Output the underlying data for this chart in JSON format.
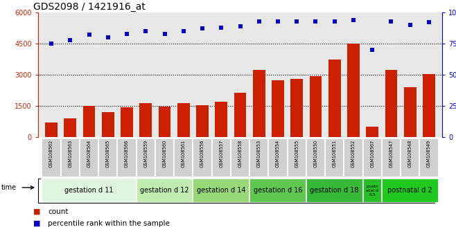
{
  "title": "GDS2098 / 1421916_at",
  "samples": [
    "GSM108562",
    "GSM108563",
    "GSM108564",
    "GSM108565",
    "GSM108566",
    "GSM108559",
    "GSM108560",
    "GSM108561",
    "GSM108556",
    "GSM108557",
    "GSM108558",
    "GSM108553",
    "GSM108554",
    "GSM108555",
    "GSM108550",
    "GSM108551",
    "GSM108552",
    "GSM108567",
    "GSM108547",
    "GSM108548",
    "GSM108549"
  ],
  "counts": [
    700,
    900,
    1500,
    1200,
    1450,
    1650,
    1480,
    1650,
    1550,
    1700,
    2150,
    3250,
    2750,
    2800,
    2950,
    3750,
    4500,
    500,
    3250,
    2400,
    3050
  ],
  "percentile": [
    75,
    78,
    82,
    80,
    83,
    85,
    83,
    85,
    87,
    88,
    89,
    93,
    93,
    93,
    93,
    93,
    94,
    70,
    93,
    90,
    92
  ],
  "groups": [
    {
      "label": "gestation d 11",
      "start": 0,
      "end": 5,
      "color": "#e0f5e0"
    },
    {
      "label": "gestation d 12",
      "start": 5,
      "end": 8,
      "color": "#c0ecb0"
    },
    {
      "label": "gestation d 14",
      "start": 8,
      "end": 11,
      "color": "#90d870"
    },
    {
      "label": "gestation d 16",
      "start": 11,
      "end": 14,
      "color": "#60c850"
    },
    {
      "label": "gestation d 18",
      "start": 14,
      "end": 17,
      "color": "#38b838"
    },
    {
      "label": "postn\natal d\n0.5",
      "start": 17,
      "end": 18,
      "color": "#28c028"
    },
    {
      "label": "postnatal d 2",
      "start": 18,
      "end": 21,
      "color": "#20c820"
    }
  ],
  "bar_color": "#cc2000",
  "dot_color": "#0000cc",
  "bar_ylim": [
    0,
    6000
  ],
  "bar_yticks": [
    0,
    1500,
    3000,
    4500,
    6000
  ],
  "bar_yticklabels": [
    "0",
    "1500",
    "3000",
    "4500",
    "6000"
  ],
  "pct_yticks": [
    0,
    25,
    50,
    75,
    100
  ],
  "pct_yticklabels": [
    "0",
    "25",
    "50",
    "75",
    "100%"
  ],
  "legend_count": "count",
  "legend_pct": "percentile rank within the sample",
  "plot_bg": "#e8e8e8",
  "sample_box_color": "#d0d0d0",
  "tick_fontsize": 7,
  "title_fontsize": 10,
  "label_fontsize": 6.5,
  "group_fontsize": 7,
  "legend_fontsize": 8
}
